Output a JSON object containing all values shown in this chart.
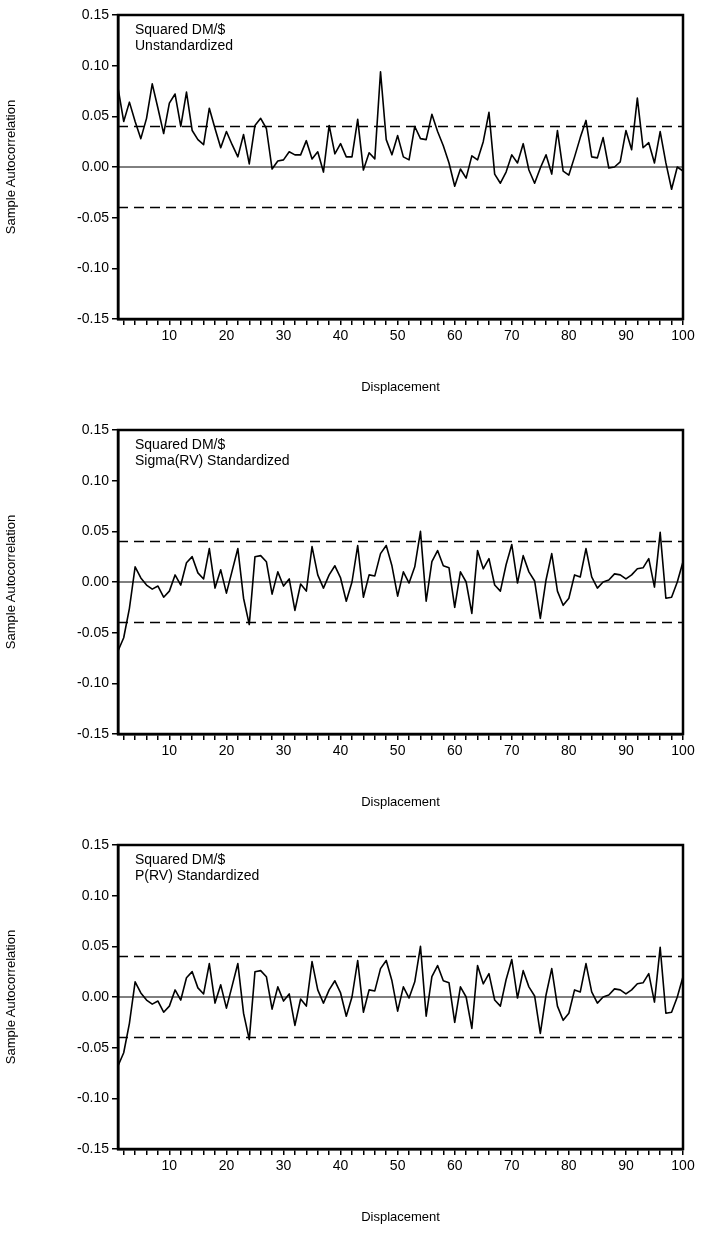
{
  "chart_data": [
    {
      "type": "line",
      "annotations": [
        "Squared DM/$",
        "Unstandardized"
      ],
      "xlabel": "Displacement",
      "ylabel": "Sample Autocorrelation",
      "x": [
        1,
        2,
        3,
        4,
        5,
        6,
        7,
        8,
        9,
        10,
        11,
        12,
        13,
        14,
        15,
        16,
        17,
        18,
        19,
        20,
        21,
        22,
        23,
        24,
        25,
        26,
        27,
        28,
        29,
        30,
        31,
        32,
        33,
        34,
        35,
        36,
        37,
        38,
        39,
        40,
        41,
        42,
        43,
        44,
        45,
        46,
        47,
        48,
        49,
        50,
        51,
        52,
        53,
        54,
        55,
        56,
        57,
        58,
        59,
        60,
        61,
        62,
        63,
        64,
        65,
        66,
        67,
        68,
        69,
        70,
        71,
        72,
        73,
        74,
        75,
        76,
        77,
        78,
        79,
        80,
        81,
        82,
        83,
        84,
        85,
        86,
        87,
        88,
        89,
        90,
        91,
        92,
        93,
        94,
        95,
        96,
        97,
        98,
        99,
        100
      ],
      "series": [
        {
          "color": "#000000",
          "values": [
            0.078,
            0.045,
            0.064,
            0.045,
            0.028,
            0.048,
            0.082,
            0.058,
            0.033,
            0.063,
            0.072,
            0.04,
            0.074,
            0.036,
            0.027,
            0.022,
            0.058,
            0.038,
            0.019,
            0.035,
            0.022,
            0.01,
            0.032,
            0.003,
            0.041,
            0.048,
            0.038,
            -0.002,
            0.006,
            0.007,
            0.015,
            0.012,
            0.012,
            0.026,
            0.008,
            0.015,
            -0.005,
            0.041,
            0.013,
            0.023,
            0.01,
            0.01,
            0.047,
            -0.003,
            0.014,
            0.008,
            0.094,
            0.027,
            0.012,
            0.031,
            0.01,
            0.007,
            0.04,
            0.028,
            0.027,
            0.052,
            0.035,
            0.021,
            0.004,
            -0.019,
            -0.002,
            -0.011,
            0.011,
            0.007,
            0.025,
            0.054,
            -0.007,
            -0.016,
            -0.005,
            0.012,
            0.004,
            0.023,
            -0.003,
            -0.016,
            -0.001,
            0.012,
            -0.007,
            0.036,
            -0.004,
            -0.008,
            0.01,
            0.029,
            0.046,
            0.01,
            0.009,
            0.029,
            -0.001,
            0.0,
            0.005,
            0.036,
            0.017,
            0.068,
            0.019,
            0.024,
            0.004,
            0.035,
            0.004,
            -0.022,
            0.0,
            -0.004
          ]
        }
      ],
      "xlim": [
        1,
        100
      ],
      "xticks": [
        {
          "value": 2,
          "label": null
        },
        {
          "value": 4,
          "label": null
        },
        {
          "value": 6,
          "label": null
        },
        {
          "value": 8,
          "label": null
        },
        10,
        {
          "value": 12,
          "label": null
        },
        {
          "value": 14,
          "label": null
        },
        {
          "value": 16,
          "label": null
        },
        {
          "value": 18,
          "label": null
        },
        20,
        {
          "value": 22,
          "label": null
        },
        {
          "value": 24,
          "label": null
        },
        {
          "value": 26,
          "label": null
        },
        {
          "value": 28,
          "label": null
        },
        30,
        {
          "value": 32,
          "label": null
        },
        {
          "value": 34,
          "label": null
        },
        {
          "value": 36,
          "label": null
        },
        {
          "value": 38,
          "label": null
        },
        40,
        {
          "value": 42,
          "label": null
        },
        {
          "value": 44,
          "label": null
        },
        {
          "value": 46,
          "label": null
        },
        {
          "value": 48,
          "label": null
        },
        50,
        {
          "value": 52,
          "label": null
        },
        {
          "value": 54,
          "label": null
        },
        {
          "value": 56,
          "label": null
        },
        {
          "value": 58,
          "label": null
        },
        60,
        {
          "value": 62,
          "label": null
        },
        {
          "value": 64,
          "label": null
        },
        {
          "value": 66,
          "label": null
        },
        {
          "value": 68,
          "label": null
        },
        70,
        {
          "value": 72,
          "label": null
        },
        {
          "value": 74,
          "label": null
        },
        {
          "value": 76,
          "label": null
        },
        {
          "value": 78,
          "label": null
        },
        80,
        {
          "value": 82,
          "label": null
        },
        {
          "value": 84,
          "label": null
        },
        {
          "value": 86,
          "label": null
        },
        {
          "value": 88,
          "label": null
        },
        90,
        {
          "value": 92,
          "label": null
        },
        {
          "value": 94,
          "label": null
        },
        {
          "value": 96,
          "label": null
        },
        {
          "value": 98,
          "label": null
        },
        100
      ],
      "ylim": [
        -0.15,
        0.15
      ],
      "yticks": [
        {
          "value": -0.15,
          "label": "-0.15"
        },
        {
          "value": -0.1,
          "label": "-0.10"
        },
        {
          "value": -0.05,
          "label": "-0.05"
        },
        {
          "value": 0,
          "label": "0.00"
        },
        {
          "value": 0.05,
          "label": "0.05"
        },
        {
          "value": 0.1,
          "label": "0.10"
        },
        {
          "value": 0.15,
          "label": "0.15"
        }
      ],
      "ref_lines": [
        {
          "axis": "y",
          "value": 0,
          "line_style": "solid"
        },
        {
          "axis": "y",
          "value": 0.04,
          "line_style": "dashed"
        },
        {
          "axis": "y",
          "value": -0.04,
          "line_style": "dashed"
        }
      ],
      "grid": false,
      "legend": false,
      "marker": "none",
      "line_style": "solid"
    },
    {
      "type": "line",
      "annotations": [
        "Squared DM/$",
        "Sigma(RV) Standardized"
      ],
      "xlabel": "Displacement",
      "ylabel": "Sample Autocorrelation",
      "x": [
        1,
        2,
        3,
        4,
        5,
        6,
        7,
        8,
        9,
        10,
        11,
        12,
        13,
        14,
        15,
        16,
        17,
        18,
        19,
        20,
        21,
        22,
        23,
        24,
        25,
        26,
        27,
        28,
        29,
        30,
        31,
        32,
        33,
        34,
        35,
        36,
        37,
        38,
        39,
        40,
        41,
        42,
        43,
        44,
        45,
        46,
        47,
        48,
        49,
        50,
        51,
        52,
        53,
        54,
        55,
        56,
        57,
        58,
        59,
        60,
        61,
        62,
        63,
        64,
        65,
        66,
        67,
        68,
        69,
        70,
        71,
        72,
        73,
        74,
        75,
        76,
        77,
        78,
        79,
        80,
        81,
        82,
        83,
        84,
        85,
        86,
        87,
        88,
        89,
        90,
        91,
        92,
        93,
        94,
        95,
        96,
        97,
        98,
        99,
        100
      ],
      "series": [
        {
          "color": "#000000",
          "values": [
            -0.068,
            -0.055,
            -0.026,
            0.015,
            0.004,
            -0.003,
            -0.007,
            -0.004,
            -0.015,
            -0.009,
            0.007,
            -0.003,
            0.019,
            0.025,
            0.009,
            0.003,
            0.033,
            -0.006,
            0.012,
            -0.011,
            0.011,
            0.033,
            -0.016,
            -0.042,
            0.025,
            0.026,
            0.02,
            -0.012,
            0.01,
            -0.004,
            0.003,
            -0.028,
            -0.002,
            -0.009,
            0.035,
            0.007,
            -0.006,
            0.007,
            0.016,
            0.004,
            -0.019,
            0.0,
            0.036,
            -0.015,
            0.007,
            0.006,
            0.028,
            0.036,
            0.016,
            -0.014,
            0.01,
            -0.001,
            0.015,
            0.05,
            -0.019,
            0.02,
            0.031,
            0.016,
            0.014,
            -0.025,
            0.01,
            0.0,
            -0.031,
            0.031,
            0.013,
            0.023,
            -0.003,
            -0.009,
            0.017,
            0.037,
            -0.001,
            0.026,
            0.01,
            0.001,
            -0.036,
            0.002,
            0.028,
            -0.009,
            -0.023,
            -0.016,
            0.007,
            0.005,
            0.033,
            0.005,
            -0.006,
            0.0,
            0.002,
            0.008,
            0.007,
            0.003,
            0.007,
            0.013,
            0.014,
            0.023,
            -0.005,
            0.049,
            -0.016,
            -0.015,
            0.0,
            0.02
          ]
        }
      ],
      "xlim": [
        1,
        100
      ],
      "xticks": [
        {
          "value": 2,
          "label": null
        },
        {
          "value": 4,
          "label": null
        },
        {
          "value": 6,
          "label": null
        },
        {
          "value": 8,
          "label": null
        },
        10,
        {
          "value": 12,
          "label": null
        },
        {
          "value": 14,
          "label": null
        },
        {
          "value": 16,
          "label": null
        },
        {
          "value": 18,
          "label": null
        },
        20,
        {
          "value": 22,
          "label": null
        },
        {
          "value": 24,
          "label": null
        },
        {
          "value": 26,
          "label": null
        },
        {
          "value": 28,
          "label": null
        },
        30,
        {
          "value": 32,
          "label": null
        },
        {
          "value": 34,
          "label": null
        },
        {
          "value": 36,
          "label": null
        },
        {
          "value": 38,
          "label": null
        },
        40,
        {
          "value": 42,
          "label": null
        },
        {
          "value": 44,
          "label": null
        },
        {
          "value": 46,
          "label": null
        },
        {
          "value": 48,
          "label": null
        },
        50,
        {
          "value": 52,
          "label": null
        },
        {
          "value": 54,
          "label": null
        },
        {
          "value": 56,
          "label": null
        },
        {
          "value": 58,
          "label": null
        },
        60,
        {
          "value": 62,
          "label": null
        },
        {
          "value": 64,
          "label": null
        },
        {
          "value": 66,
          "label": null
        },
        {
          "value": 68,
          "label": null
        },
        70,
        {
          "value": 72,
          "label": null
        },
        {
          "value": 74,
          "label": null
        },
        {
          "value": 76,
          "label": null
        },
        {
          "value": 78,
          "label": null
        },
        80,
        {
          "value": 82,
          "label": null
        },
        {
          "value": 84,
          "label": null
        },
        {
          "value": 86,
          "label": null
        },
        {
          "value": 88,
          "label": null
        },
        90,
        {
          "value": 92,
          "label": null
        },
        {
          "value": 94,
          "label": null
        },
        {
          "value": 96,
          "label": null
        },
        {
          "value": 98,
          "label": null
        },
        100
      ],
      "ylim": [
        -0.15,
        0.15
      ],
      "yticks": [
        {
          "value": -0.15,
          "label": "-0.15"
        },
        {
          "value": -0.1,
          "label": "-0.10"
        },
        {
          "value": -0.05,
          "label": "-0.05"
        },
        {
          "value": 0,
          "label": "0.00"
        },
        {
          "value": 0.05,
          "label": "0.05"
        },
        {
          "value": 0.1,
          "label": "0.10"
        },
        {
          "value": 0.15,
          "label": "0.15"
        }
      ],
      "ref_lines": [
        {
          "axis": "y",
          "value": 0,
          "line_style": "solid"
        },
        {
          "axis": "y",
          "value": 0.04,
          "line_style": "dashed"
        },
        {
          "axis": "y",
          "value": -0.04,
          "line_style": "dashed"
        }
      ],
      "grid": false,
      "legend": false,
      "marker": "none",
      "line_style": "solid"
    },
    {
      "type": "line",
      "annotations": [
        "Squared DM/$",
        "P(RV) Standardized"
      ],
      "xlabel": "Displacement",
      "ylabel": "Sample Autocorrelation",
      "x": [
        1,
        2,
        3,
        4,
        5,
        6,
        7,
        8,
        9,
        10,
        11,
        12,
        13,
        14,
        15,
        16,
        17,
        18,
        19,
        20,
        21,
        22,
        23,
        24,
        25,
        26,
        27,
        28,
        29,
        30,
        31,
        32,
        33,
        34,
        35,
        36,
        37,
        38,
        39,
        40,
        41,
        42,
        43,
        44,
        45,
        46,
        47,
        48,
        49,
        50,
        51,
        52,
        53,
        54,
        55,
        56,
        57,
        58,
        59,
        60,
        61,
        62,
        63,
        64,
        65,
        66,
        67,
        68,
        69,
        70,
        71,
        72,
        73,
        74,
        75,
        76,
        77,
        78,
        79,
        80,
        81,
        82,
        83,
        84,
        85,
        86,
        87,
        88,
        89,
        90,
        91,
        92,
        93,
        94,
        95,
        96,
        97,
        98,
        99,
        100
      ],
      "series": [
        {
          "color": "#000000",
          "values": [
            -0.068,
            -0.055,
            -0.026,
            0.015,
            0.004,
            -0.003,
            -0.007,
            -0.004,
            -0.015,
            -0.009,
            0.007,
            -0.003,
            0.019,
            0.025,
            0.009,
            0.003,
            0.033,
            -0.006,
            0.012,
            -0.011,
            0.011,
            0.033,
            -0.016,
            -0.042,
            0.025,
            0.026,
            0.02,
            -0.012,
            0.01,
            -0.004,
            0.003,
            -0.028,
            -0.002,
            -0.009,
            0.035,
            0.007,
            -0.006,
            0.007,
            0.016,
            0.004,
            -0.019,
            0.0,
            0.036,
            -0.015,
            0.007,
            0.006,
            0.028,
            0.036,
            0.016,
            -0.014,
            0.01,
            -0.001,
            0.015,
            0.05,
            -0.019,
            0.02,
            0.031,
            0.016,
            0.014,
            -0.025,
            0.01,
            0.0,
            -0.031,
            0.031,
            0.013,
            0.023,
            -0.003,
            -0.009,
            0.017,
            0.037,
            -0.001,
            0.026,
            0.01,
            0.001,
            -0.036,
            0.002,
            0.028,
            -0.009,
            -0.023,
            -0.016,
            0.007,
            0.005,
            0.033,
            0.005,
            -0.006,
            0.0,
            0.002,
            0.008,
            0.007,
            0.003,
            0.007,
            0.013,
            0.014,
            0.023,
            -0.005,
            0.049,
            -0.016,
            -0.015,
            0.0,
            0.02
          ]
        }
      ],
      "xlim": [
        1,
        100
      ],
      "xticks": [
        {
          "value": 2,
          "label": null
        },
        {
          "value": 4,
          "label": null
        },
        {
          "value": 6,
          "label": null
        },
        {
          "value": 8,
          "label": null
        },
        10,
        {
          "value": 12,
          "label": null
        },
        {
          "value": 14,
          "label": null
        },
        {
          "value": 16,
          "label": null
        },
        {
          "value": 18,
          "label": null
        },
        20,
        {
          "value": 22,
          "label": null
        },
        {
          "value": 24,
          "label": null
        },
        {
          "value": 26,
          "label": null
        },
        {
          "value": 28,
          "label": null
        },
        30,
        {
          "value": 32,
          "label": null
        },
        {
          "value": 34,
          "label": null
        },
        {
          "value": 36,
          "label": null
        },
        {
          "value": 38,
          "label": null
        },
        40,
        {
          "value": 42,
          "label": null
        },
        {
          "value": 44,
          "label": null
        },
        {
          "value": 46,
          "label": null
        },
        {
          "value": 48,
          "label": null
        },
        50,
        {
          "value": 52,
          "label": null
        },
        {
          "value": 54,
          "label": null
        },
        {
          "value": 56,
          "label": null
        },
        {
          "value": 58,
          "label": null
        },
        60,
        {
          "value": 62,
          "label": null
        },
        {
          "value": 64,
          "label": null
        },
        {
          "value": 66,
          "label": null
        },
        {
          "value": 68,
          "label": null
        },
        70,
        {
          "value": 72,
          "label": null
        },
        {
          "value": 74,
          "label": null
        },
        {
          "value": 76,
          "label": null
        },
        {
          "value": 78,
          "label": null
        },
        80,
        {
          "value": 82,
          "label": null
        },
        {
          "value": 84,
          "label": null
        },
        {
          "value": 86,
          "label": null
        },
        {
          "value": 88,
          "label": null
        },
        90,
        {
          "value": 92,
          "label": null
        },
        {
          "value": 94,
          "label": null
        },
        {
          "value": 96,
          "label": null
        },
        {
          "value": 98,
          "label": null
        },
        100
      ],
      "ylim": [
        -0.15,
        0.15
      ],
      "yticks": [
        {
          "value": -0.15,
          "label": "-0.15"
        },
        {
          "value": -0.1,
          "label": "-0.10"
        },
        {
          "value": -0.05,
          "label": "-0.05"
        },
        {
          "value": 0,
          "label": "0.00"
        },
        {
          "value": 0.05,
          "label": "0.05"
        },
        {
          "value": 0.1,
          "label": "0.10"
        },
        {
          "value": 0.15,
          "label": "0.15"
        }
      ],
      "ref_lines": [
        {
          "axis": "y",
          "value": 0,
          "line_style": "solid"
        },
        {
          "axis": "y",
          "value": 0.04,
          "line_style": "dashed"
        },
        {
          "axis": "y",
          "value": -0.04,
          "line_style": "dashed"
        }
      ],
      "grid": false,
      "legend": false,
      "marker": "none",
      "line_style": "solid"
    }
  ]
}
